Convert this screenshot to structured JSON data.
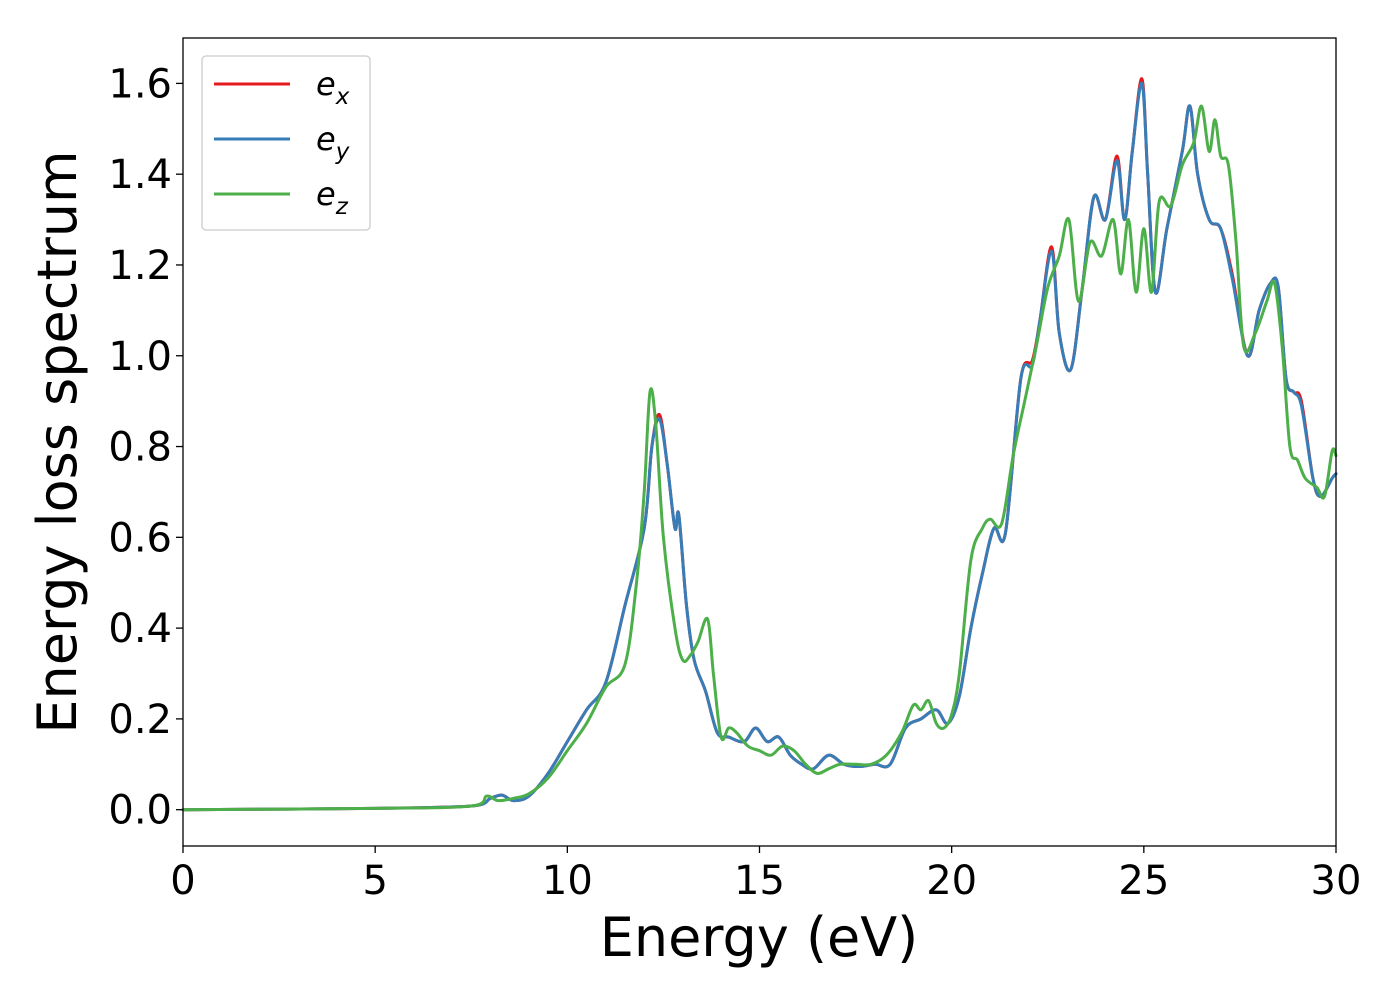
{
  "chart_data": {
    "type": "line",
    "xlabel": "Energy (eV)",
    "ylabel": "Energy loss spectrum",
    "xlim": [
      0,
      30
    ],
    "ylim": [
      -0.08,
      1.7
    ],
    "xticks": [
      0,
      5,
      10,
      15,
      20,
      25,
      30
    ],
    "xtick_labels": [
      "0",
      "5",
      "10",
      "15",
      "20",
      "25",
      "30"
    ],
    "yticks": [
      0.0,
      0.2,
      0.4,
      0.6,
      0.8,
      1.0,
      1.2,
      1.4,
      1.6
    ],
    "ytick_labels": [
      "0.0",
      "0.2",
      "0.4",
      "0.6",
      "0.8",
      "1.0",
      "1.2",
      "1.4",
      "1.6"
    ],
    "grid": false,
    "legend_position": "upper-left",
    "series": [
      {
        "name": "e_x",
        "legend_base": "e",
        "legend_sub": "x",
        "color": "#e41a1c",
        "x": [
          0,
          5,
          7.5,
          8.0,
          8.3,
          8.6,
          9.0,
          9.5,
          10.0,
          10.5,
          11.0,
          11.5,
          12.0,
          12.2,
          12.4,
          12.6,
          12.8,
          12.9,
          13.1,
          13.3,
          13.6,
          13.9,
          14.2,
          14.6,
          14.9,
          15.2,
          15.5,
          15.8,
          16.1,
          16.4,
          16.8,
          17.2,
          17.6,
          18.0,
          18.4,
          18.8,
          19.2,
          19.6,
          19.9,
          20.2,
          20.5,
          20.8,
          21.1,
          21.4,
          21.8,
          22.1,
          22.3,
          22.6,
          22.8,
          23.1,
          23.4,
          23.7,
          24.0,
          24.3,
          24.5,
          24.7,
          24.95,
          25.1,
          25.3,
          25.6,
          26.0,
          26.2,
          26.4,
          26.7,
          27.0,
          27.3,
          27.7,
          28.0,
          28.3,
          28.5,
          28.7,
          28.9,
          29.1,
          29.4,
          29.6,
          29.9,
          30.0
        ],
        "y": [
          0.0,
          0.003,
          0.008,
          0.025,
          0.032,
          0.02,
          0.03,
          0.08,
          0.15,
          0.22,
          0.28,
          0.45,
          0.62,
          0.8,
          0.87,
          0.76,
          0.62,
          0.65,
          0.45,
          0.33,
          0.26,
          0.17,
          0.16,
          0.15,
          0.18,
          0.15,
          0.16,
          0.12,
          0.1,
          0.09,
          0.12,
          0.1,
          0.095,
          0.1,
          0.1,
          0.18,
          0.2,
          0.22,
          0.19,
          0.25,
          0.4,
          0.52,
          0.62,
          0.61,
          0.95,
          0.99,
          1.08,
          1.24,
          1.05,
          0.97,
          1.15,
          1.35,
          1.3,
          1.44,
          1.3,
          1.45,
          1.61,
          1.4,
          1.14,
          1.28,
          1.45,
          1.55,
          1.4,
          1.3,
          1.28,
          1.18,
          1.0,
          1.1,
          1.16,
          1.15,
          0.95,
          0.92,
          0.9,
          0.73,
          0.69,
          0.73,
          0.74
        ]
      },
      {
        "name": "e_y",
        "legend_base": "e",
        "legend_sub": "y",
        "color": "#377eb8",
        "x": [
          0,
          5,
          7.5,
          8.0,
          8.3,
          8.6,
          9.0,
          9.5,
          10.0,
          10.5,
          11.0,
          11.5,
          12.0,
          12.2,
          12.4,
          12.6,
          12.8,
          12.9,
          13.1,
          13.3,
          13.6,
          13.9,
          14.2,
          14.6,
          14.9,
          15.2,
          15.5,
          15.8,
          16.1,
          16.4,
          16.8,
          17.2,
          17.6,
          18.0,
          18.4,
          18.8,
          19.2,
          19.6,
          19.9,
          20.2,
          20.5,
          20.8,
          21.1,
          21.4,
          21.8,
          22.1,
          22.3,
          22.6,
          22.8,
          23.1,
          23.4,
          23.7,
          24.0,
          24.3,
          24.5,
          24.7,
          24.95,
          25.1,
          25.3,
          25.6,
          26.0,
          26.2,
          26.4,
          26.7,
          27.0,
          27.3,
          27.7,
          28.0,
          28.3,
          28.5,
          28.7,
          28.9,
          29.1,
          29.4,
          29.6,
          29.9,
          30.0
        ],
        "y": [
          0.0,
          0.003,
          0.008,
          0.025,
          0.032,
          0.02,
          0.03,
          0.08,
          0.15,
          0.22,
          0.28,
          0.45,
          0.62,
          0.8,
          0.86,
          0.76,
          0.62,
          0.65,
          0.45,
          0.33,
          0.26,
          0.17,
          0.16,
          0.15,
          0.18,
          0.15,
          0.16,
          0.12,
          0.1,
          0.09,
          0.12,
          0.1,
          0.095,
          0.1,
          0.1,
          0.18,
          0.2,
          0.22,
          0.19,
          0.25,
          0.4,
          0.52,
          0.62,
          0.61,
          0.95,
          0.98,
          1.08,
          1.23,
          1.05,
          0.97,
          1.15,
          1.35,
          1.3,
          1.43,
          1.3,
          1.45,
          1.6,
          1.4,
          1.14,
          1.28,
          1.45,
          1.55,
          1.4,
          1.3,
          1.28,
          1.17,
          1.0,
          1.1,
          1.16,
          1.15,
          0.95,
          0.92,
          0.89,
          0.73,
          0.69,
          0.73,
          0.74
        ]
      },
      {
        "name": "e_z",
        "legend_base": "e",
        "legend_sub": "z",
        "color": "#4daf4a",
        "x": [
          0,
          5,
          7.5,
          7.9,
          8.2,
          8.6,
          9.0,
          9.5,
          10.0,
          10.5,
          11.0,
          11.5,
          11.8,
          12.0,
          12.15,
          12.3,
          12.5,
          12.8,
          13.0,
          13.2,
          13.4,
          13.65,
          13.8,
          14.0,
          14.2,
          14.4,
          14.7,
          15.0,
          15.3,
          15.6,
          15.9,
          16.2,
          16.5,
          16.8,
          17.1,
          17.5,
          17.9,
          18.3,
          18.7,
          19.0,
          19.2,
          19.4,
          19.6,
          19.8,
          20.0,
          20.2,
          20.5,
          20.8,
          21.0,
          21.3,
          21.6,
          21.9,
          22.2,
          22.5,
          22.8,
          23.05,
          23.3,
          23.6,
          23.9,
          24.2,
          24.4,
          24.6,
          24.8,
          25.0,
          25.2,
          25.4,
          25.7,
          26.0,
          26.3,
          26.5,
          26.7,
          26.85,
          27.0,
          27.2,
          27.4,
          27.6,
          27.9,
          28.2,
          28.4,
          28.6,
          28.8,
          29.0,
          29.2,
          29.5,
          29.7,
          29.9,
          30.0
        ],
        "y": [
          0.0,
          0.003,
          0.008,
          0.03,
          0.02,
          0.025,
          0.035,
          0.07,
          0.13,
          0.19,
          0.27,
          0.32,
          0.5,
          0.7,
          0.92,
          0.85,
          0.6,
          0.4,
          0.33,
          0.34,
          0.37,
          0.42,
          0.3,
          0.16,
          0.18,
          0.17,
          0.14,
          0.13,
          0.12,
          0.14,
          0.13,
          0.1,
          0.08,
          0.09,
          0.1,
          0.1,
          0.1,
          0.12,
          0.17,
          0.23,
          0.22,
          0.24,
          0.19,
          0.18,
          0.21,
          0.3,
          0.55,
          0.62,
          0.64,
          0.63,
          0.78,
          0.9,
          1.02,
          1.15,
          1.22,
          1.3,
          1.12,
          1.25,
          1.22,
          1.3,
          1.18,
          1.3,
          1.14,
          1.28,
          1.14,
          1.34,
          1.33,
          1.42,
          1.47,
          1.55,
          1.45,
          1.52,
          1.44,
          1.42,
          1.25,
          1.02,
          1.05,
          1.12,
          1.16,
          1.02,
          0.8,
          0.77,
          0.73,
          0.71,
          0.69,
          0.79,
          0.78
        ]
      }
    ]
  }
}
